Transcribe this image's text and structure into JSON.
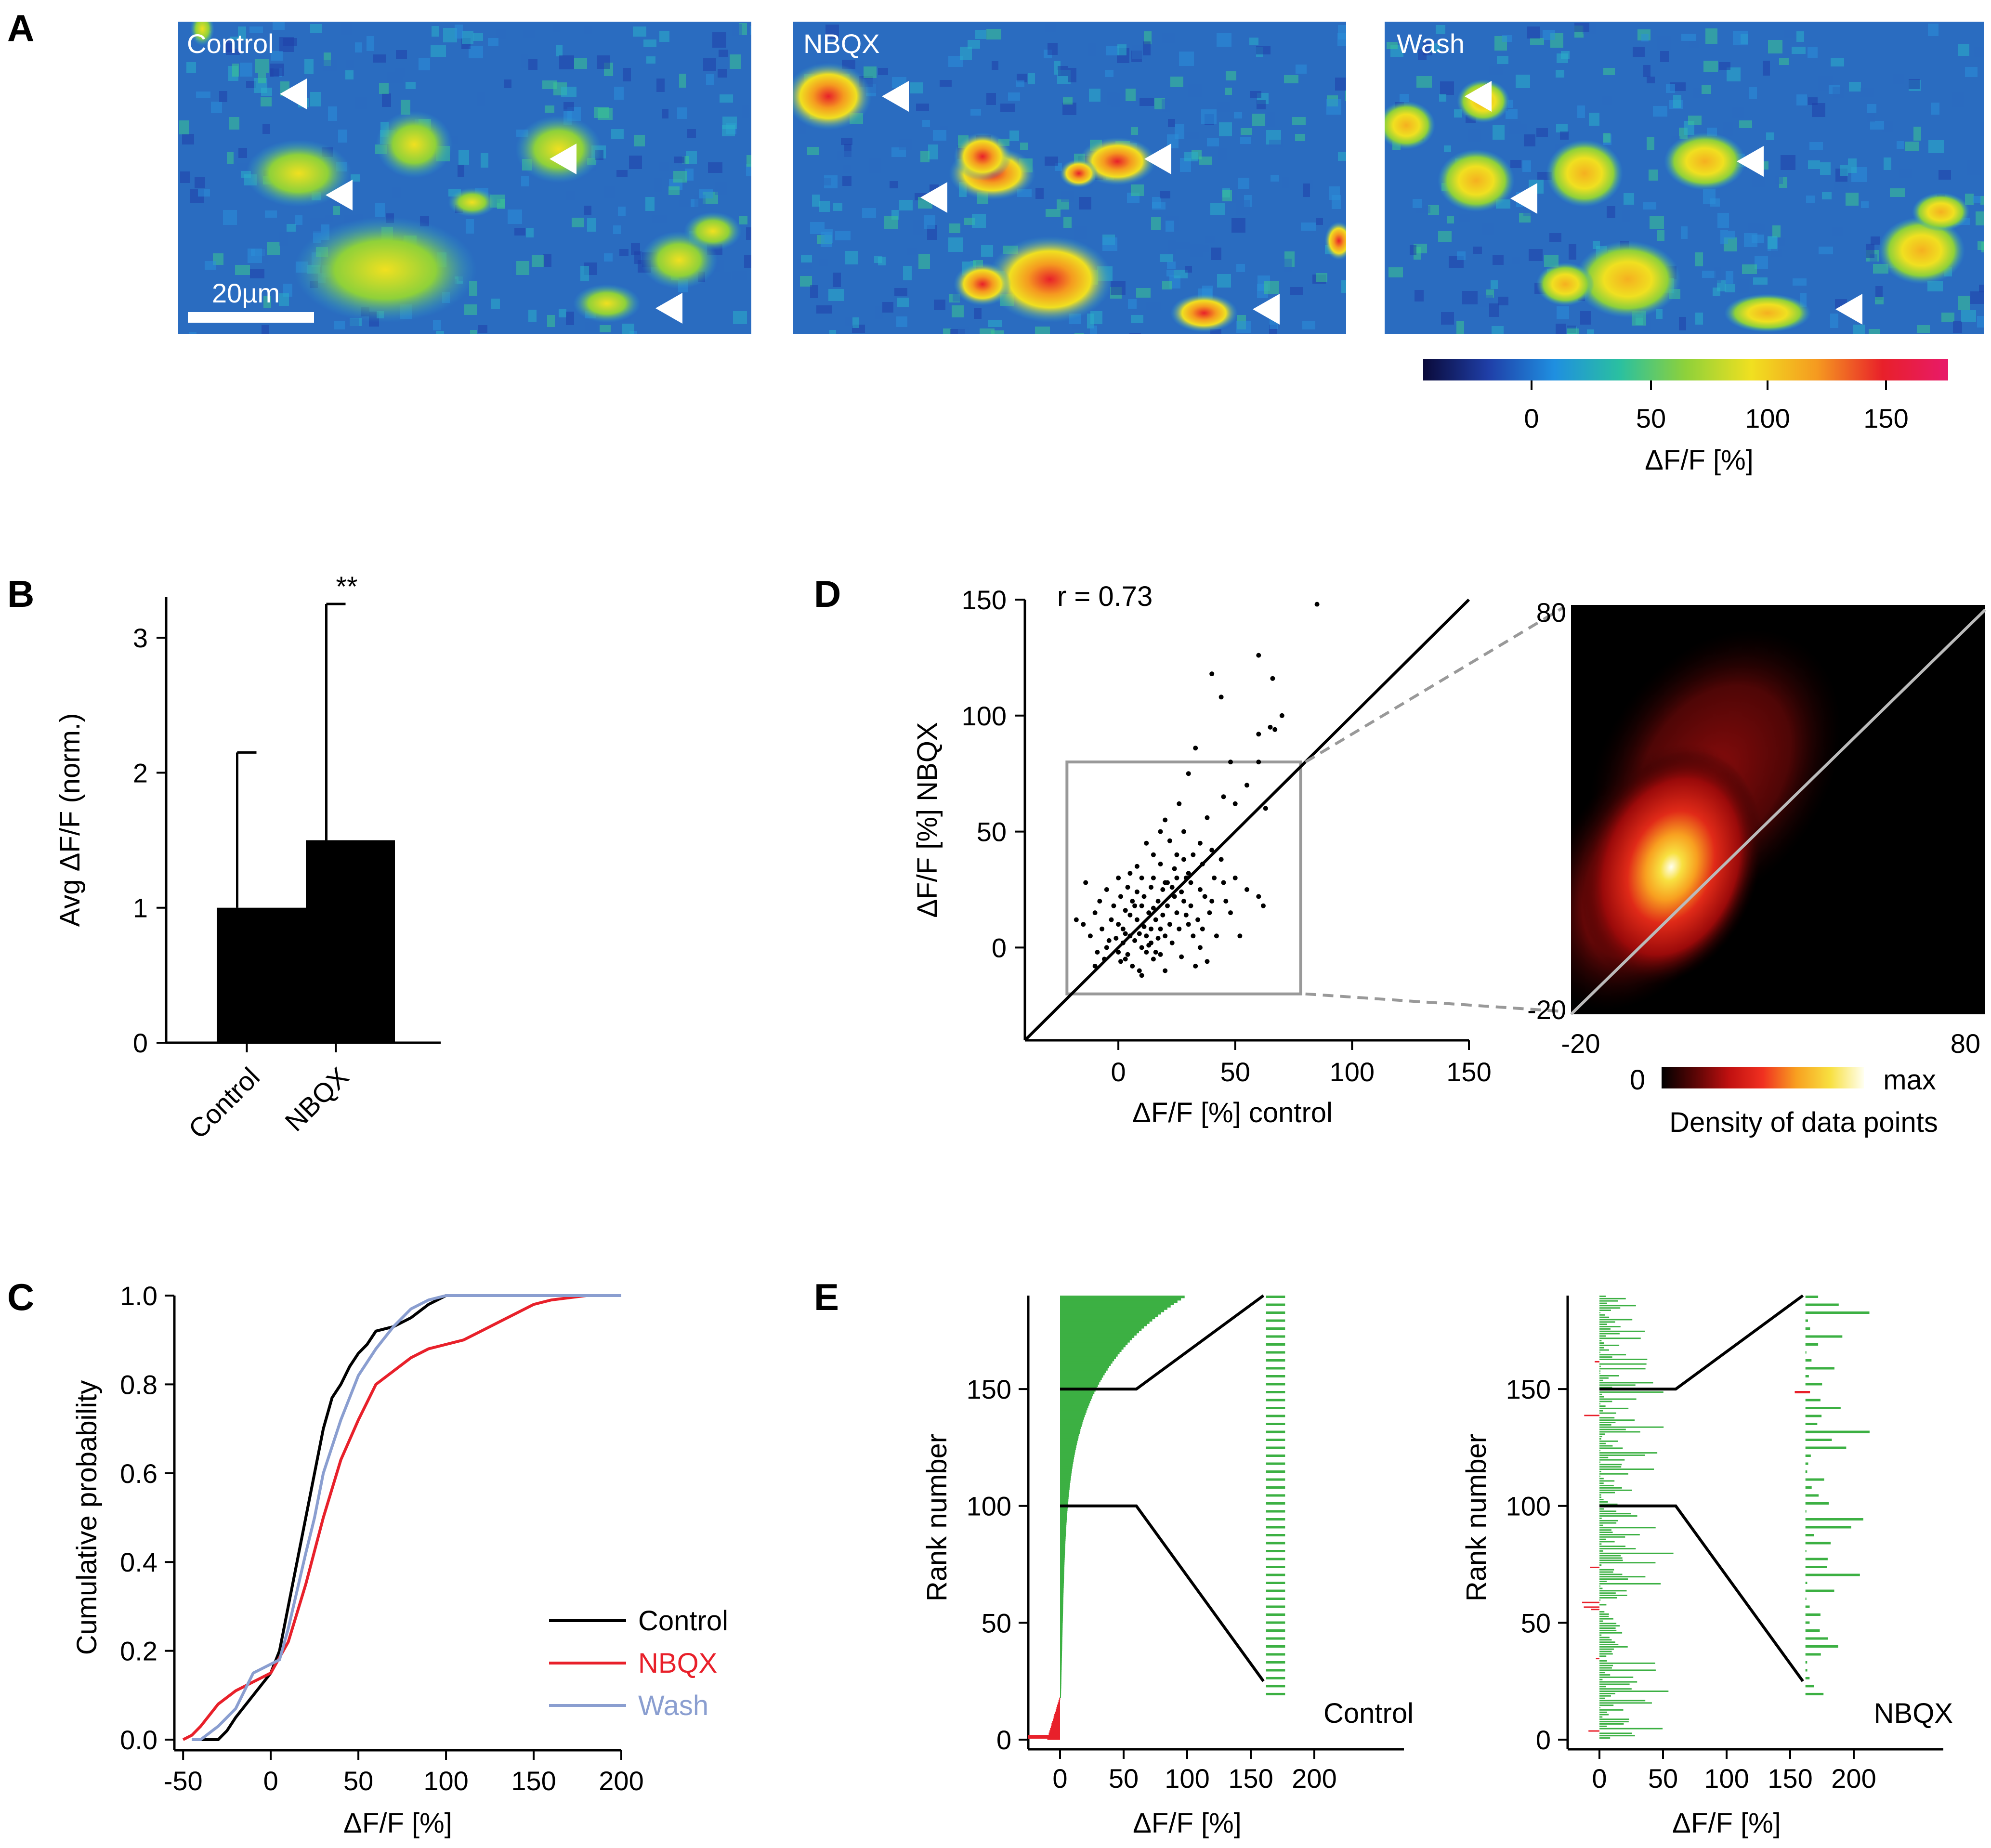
{
  "panel_labels": {
    "a": "A",
    "b": "B",
    "c": "C",
    "d": "D",
    "e": "E"
  },
  "panelA": {
    "images": [
      {
        "label": "Control",
        "palette": "ctrl"
      },
      {
        "label": "NBQX",
        "palette": "nbqx"
      },
      {
        "label": "Wash",
        "palette": "wash"
      }
    ],
    "scale_bar": "20µm",
    "colorbar": {
      "ticks": [
        "0",
        "50",
        "100",
        "150"
      ],
      "label": "ΔF/F [%]",
      "colors": [
        "#0a0a3a",
        "#1f3fa8",
        "#1f8fe0",
        "#2ac0a0",
        "#8ed13a",
        "#f0e020",
        "#f59a20",
        "#e8202a",
        "#e81a6a"
      ]
    }
  },
  "chart_data": [
    {
      "panel": "B",
      "type": "bar",
      "categories": [
        "Control",
        "NBQX"
      ],
      "values": [
        1.0,
        1.5
      ],
      "error_upper": [
        2.15,
        3.25
      ],
      "significance": "**",
      "ylabel": "Avg ΔF/F (norm.)",
      "ylim": [
        0,
        3.3
      ],
      "yticks": [
        "0",
        "1",
        "2",
        "3"
      ]
    },
    {
      "panel": "C",
      "type": "line",
      "xlabel": "ΔF/F [%]",
      "ylabel": "Cumulative probability",
      "xlim": [
        -55,
        200
      ],
      "ylim": [
        0,
        1
      ],
      "xticks": [
        "-50",
        "0",
        "50",
        "100",
        "150",
        "200"
      ],
      "yticks": [
        "0.0",
        "0.2",
        "0.4",
        "0.6",
        "0.8",
        "1.0"
      ],
      "series": [
        {
          "name": "Control",
          "color": "#000000",
          "x": [
            -45,
            -30,
            -25,
            -20,
            -10,
            0,
            5,
            10,
            20,
            25,
            30,
            35,
            40,
            45,
            50,
            55,
            60,
            70,
            80,
            90,
            100,
            200
          ],
          "y": [
            0.0,
            0.0,
            0.02,
            0.05,
            0.1,
            0.15,
            0.2,
            0.3,
            0.5,
            0.6,
            0.7,
            0.77,
            0.8,
            0.84,
            0.87,
            0.89,
            0.92,
            0.93,
            0.95,
            0.98,
            1.0,
            1.0
          ]
        },
        {
          "name": "NBQX",
          "color": "#e8202a",
          "x": [
            -50,
            -45,
            -40,
            -30,
            -20,
            -10,
            0,
            10,
            20,
            30,
            40,
            50,
            60,
            70,
            80,
            90,
            100,
            110,
            120,
            130,
            140,
            150,
            160,
            180,
            200
          ],
          "y": [
            0.0,
            0.01,
            0.03,
            0.08,
            0.11,
            0.13,
            0.15,
            0.22,
            0.35,
            0.5,
            0.63,
            0.72,
            0.8,
            0.83,
            0.86,
            0.88,
            0.89,
            0.9,
            0.92,
            0.94,
            0.96,
            0.98,
            0.99,
            1.0,
            1.0
          ]
        },
        {
          "name": "Wash",
          "color": "#8a9ed0",
          "x": [
            -45,
            -40,
            -30,
            -20,
            -10,
            0,
            5,
            10,
            20,
            25,
            30,
            40,
            50,
            60,
            70,
            80,
            90,
            100,
            200
          ],
          "y": [
            0.0,
            0.0,
            0.03,
            0.07,
            0.15,
            0.17,
            0.18,
            0.25,
            0.42,
            0.5,
            0.6,
            0.72,
            0.82,
            0.88,
            0.93,
            0.97,
            0.99,
            1.0,
            1.0
          ]
        }
      ]
    },
    {
      "panel": "D",
      "type": "scatter",
      "annotation": "r = 0.73",
      "xlabel": "ΔF/F [%]  control",
      "ylabel": "ΔF/F [%] NBQX",
      "xlim": [
        -40,
        150
      ],
      "ylim": [
        -40,
        150
      ],
      "xticks": [
        "0",
        "50",
        "100",
        "150"
      ],
      "yticks": [
        "0",
        "50",
        "100",
        "150"
      ],
      "zoom_box": [
        [
          -22,
          -20
        ],
        [
          78,
          80
        ]
      ],
      "points": [
        [
          85,
          148
        ],
        [
          60,
          126
        ],
        [
          40,
          118
        ],
        [
          66,
          116
        ],
        [
          44,
          108
        ],
        [
          70,
          100
        ],
        [
          60,
          92
        ],
        [
          65,
          95
        ],
        [
          67,
          94
        ],
        [
          33,
          86
        ],
        [
          48,
          80
        ],
        [
          60,
          80
        ],
        [
          30,
          75
        ],
        [
          45,
          65
        ],
        [
          50,
          62
        ],
        [
          55,
          70
        ],
        [
          63,
          60
        ],
        [
          26,
          62
        ],
        [
          20,
          55
        ],
        [
          18,
          50
        ],
        [
          12,
          45
        ],
        [
          22,
          46
        ],
        [
          28,
          50
        ],
        [
          35,
          45
        ],
        [
          38,
          56
        ],
        [
          15,
          40
        ],
        [
          8,
          35
        ],
        [
          5,
          32
        ],
        [
          10,
          30
        ],
        [
          15,
          30
        ],
        [
          20,
          28
        ],
        [
          25,
          30
        ],
        [
          30,
          32
        ],
        [
          35,
          25
        ],
        [
          40,
          20
        ],
        [
          45,
          28
        ],
        [
          50,
          30
        ],
        [
          55,
          25
        ],
        [
          60,
          22
        ],
        [
          62,
          18
        ],
        [
          -5,
          25
        ],
        [
          -8,
          20
        ],
        [
          -10,
          15
        ],
        [
          -3,
          12
        ],
        [
          0,
          10
        ],
        [
          2,
          8
        ],
        [
          5,
          5
        ],
        [
          7,
          3
        ],
        [
          10,
          0
        ],
        [
          12,
          -2
        ],
        [
          15,
          -5
        ],
        [
          18,
          -3
        ],
        [
          20,
          5
        ],
        [
          22,
          10
        ],
        [
          25,
          15
        ],
        [
          28,
          20
        ],
        [
          30,
          10
        ],
        [
          32,
          5
        ],
        [
          35,
          0
        ],
        [
          -12,
          5
        ],
        [
          -15,
          10
        ],
        [
          -5,
          0
        ],
        [
          0,
          -2
        ],
        [
          3,
          -5
        ],
        [
          6,
          -8
        ],
        [
          9,
          -10
        ],
        [
          12,
          5
        ],
        [
          14,
          8
        ],
        [
          16,
          12
        ],
        [
          -2,
          18
        ],
        [
          1,
          22
        ],
        [
          4,
          26
        ],
        [
          7,
          18
        ],
        [
          11,
          22
        ],
        [
          13,
          15
        ],
        [
          17,
          20
        ],
        [
          19,
          25
        ],
        [
          21,
          18
        ],
        [
          24,
          22
        ],
        [
          26,
          8
        ],
        [
          29,
          14
        ],
        [
          31,
          18
        ],
        [
          34,
          12
        ],
        [
          36,
          8
        ],
        [
          39,
          15
        ],
        [
          42,
          5
        ],
        [
          -7,
          8
        ],
        [
          -4,
          3
        ],
        [
          2,
          2
        ],
        [
          8,
          12
        ],
        [
          10,
          18
        ],
        [
          14,
          2
        ],
        [
          16,
          -2
        ],
        [
          18,
          8
        ],
        [
          23,
          2
        ],
        [
          27,
          -4
        ],
        [
          -9,
          -2
        ],
        [
          -6,
          -5
        ],
        [
          5,
          14
        ],
        [
          9,
          6
        ],
        [
          3,
          16
        ],
        [
          6,
          20
        ],
        [
          0,
          30
        ],
        [
          -14,
          28
        ],
        [
          -18,
          12
        ],
        [
          48,
          15
        ],
        [
          52,
          5
        ],
        [
          38,
          -6
        ],
        [
          33,
          -8
        ],
        [
          20,
          -10
        ],
        [
          10,
          -12
        ],
        [
          -10,
          -8
        ],
        [
          44,
          38
        ],
        [
          40,
          42
        ],
        [
          36,
          36
        ],
        [
          32,
          40
        ],
        [
          28,
          38
        ],
        [
          24,
          34
        ],
        [
          18,
          36
        ],
        [
          14,
          26
        ],
        [
          8,
          24
        ],
        [
          3,
          6
        ],
        [
          1,
          -6
        ],
        [
          -1,
          4
        ],
        [
          4,
          -3
        ],
        [
          11,
          9
        ],
        [
          13,
          1
        ],
        [
          15,
          17
        ],
        [
          17,
          4
        ],
        [
          19,
          14
        ],
        [
          21,
          28
        ],
        [
          23,
          26
        ],
        [
          25,
          40
        ],
        [
          27,
          24
        ],
        [
          29,
          30
        ],
        [
          31,
          28
        ],
        [
          37,
          22
        ],
        [
          41,
          30
        ],
        [
          46,
          20
        ]
      ]
    },
    {
      "panel": "D-density",
      "type": "heatmap",
      "xlim": [
        -20,
        80
      ],
      "ylim": [
        -20,
        80
      ],
      "xticks": [
        "-20",
        "80"
      ],
      "yticks": [
        "-20",
        "80"
      ],
      "colorbar_ticks": [
        "0",
        "max"
      ],
      "colorbar_label": "Density of data points",
      "colors": [
        "#000000",
        "#5a0505",
        "#c01010",
        "#f03020",
        "#f8a020",
        "#f8e040",
        "#fffff0"
      ]
    },
    {
      "panel": "E-control",
      "type": "bar",
      "label": "Control",
      "xlabel": "ΔF/F [%]",
      "ylabel": "Rank number",
      "xlim": [
        -25,
        225
      ],
      "ylim": [
        0,
        190
      ],
      "xticks": [
        "0",
        "50",
        "100",
        "150",
        "200"
      ],
      "yticks": [
        "0",
        "50",
        "100",
        "150"
      ],
      "zoom_range": [
        100,
        150
      ]
    },
    {
      "panel": "E-nbqx",
      "type": "bar",
      "label": "NBQX",
      "xlabel": "ΔF/F [%]",
      "ylabel": "Rank number",
      "xlim": [
        -25,
        225
      ],
      "ylim": [
        0,
        190
      ],
      "xticks": [
        "0",
        "50",
        "100",
        "150",
        "200"
      ],
      "yticks": [
        "0",
        "50",
        "100",
        "150"
      ],
      "zoom_range": [
        100,
        150
      ]
    }
  ]
}
